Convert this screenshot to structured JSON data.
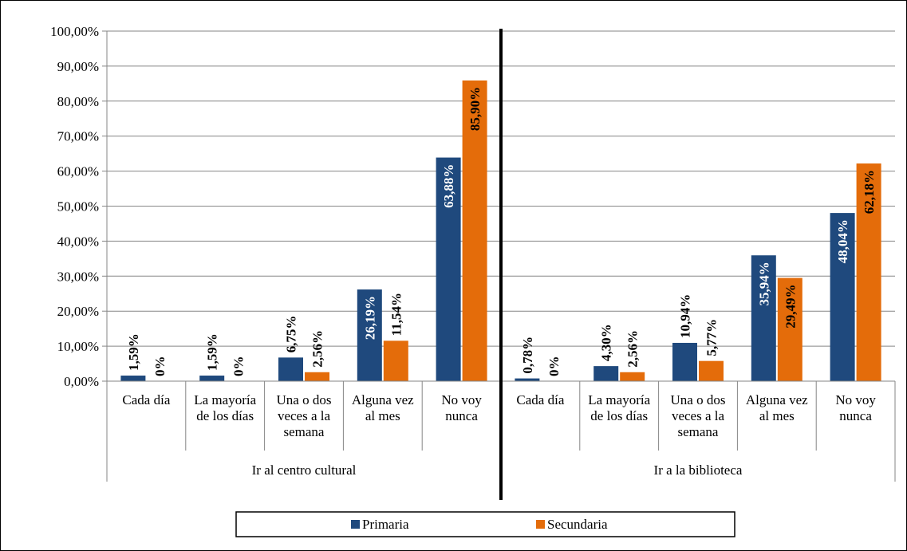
{
  "chart_data": {
    "type": "bar",
    "ylim": [
      0,
      100
    ],
    "yticks": [
      "0,00%",
      "10,00%",
      "20,00%",
      "30,00%",
      "40,00%",
      "50,00%",
      "60,00%",
      "70,00%",
      "80,00%",
      "90,00%",
      "100,00%"
    ],
    "grid": true,
    "legend_position": "bottom",
    "groups": [
      {
        "label": "Ir al centro cultural",
        "categories": [
          [
            "Cada día"
          ],
          [
            "La mayoría",
            "de los días"
          ],
          [
            "Una o dos",
            "veces a la",
            "semana"
          ],
          [
            "Alguna vez",
            "al mes"
          ],
          [
            "No voy",
            "nunca"
          ]
        ]
      },
      {
        "label": "Ir a la biblioteca",
        "categories": [
          [
            "Cada día"
          ],
          [
            "La mayoría",
            "de los días"
          ],
          [
            "Una o dos",
            "veces a la",
            "semana"
          ],
          [
            "Alguna vez",
            "al mes"
          ],
          [
            "No voy",
            "nunca"
          ]
        ]
      }
    ],
    "series": [
      {
        "name": "Primaria",
        "color": "#1f497d",
        "values": [
          1.59,
          1.59,
          6.75,
          26.19,
          63.88,
          0.78,
          4.3,
          10.94,
          35.94,
          48.04
        ],
        "labels": [
          "1,59%",
          "1,59%",
          "6,75%",
          "26,19%",
          "63,88%",
          "0,78%",
          "4,30%",
          "10,94%",
          "35,94%",
          "48,04%"
        ]
      },
      {
        "name": "Secundaria",
        "color": "#e46c0a",
        "values": [
          0,
          0,
          2.56,
          11.54,
          85.9,
          0,
          2.56,
          5.77,
          29.49,
          62.18
        ],
        "labels": [
          "0%",
          "0%",
          "2,56%",
          "11,54%",
          "85,90%",
          "0%",
          "2,56%",
          "5,77%",
          "29,49%",
          "62,18%"
        ]
      }
    ]
  }
}
